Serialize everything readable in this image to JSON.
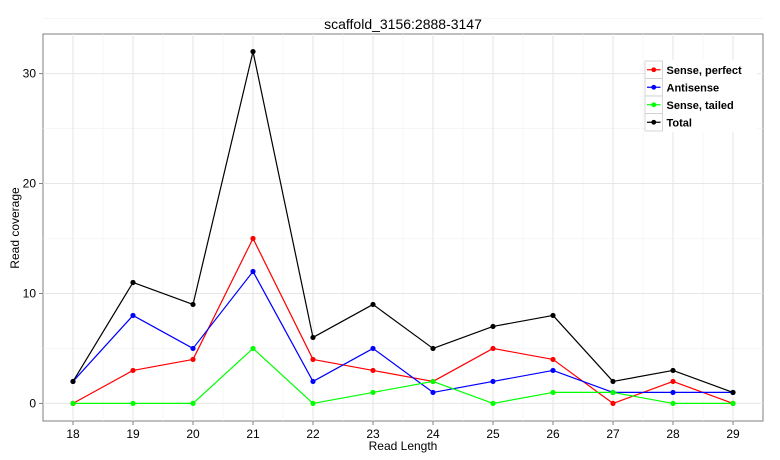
{
  "chart_data": {
    "type": "line",
    "title": "scaffold_3156:2888-3147",
    "xlabel": "Read Length",
    "ylabel": "Read coverage",
    "x": [
      18,
      19,
      20,
      21,
      22,
      23,
      24,
      25,
      26,
      27,
      28,
      29
    ],
    "xlim": [
      17.5,
      29.5
    ],
    "ylim": [
      -1.6,
      33.6
    ],
    "yticks": [
      0,
      10,
      20,
      30
    ],
    "grid": true,
    "legend_position": "top-right",
    "series": [
      {
        "name": "Sense, perfect",
        "color": "#ff0000",
        "values": [
          0,
          3,
          4,
          15,
          4,
          3,
          2,
          5,
          4,
          0,
          2,
          0
        ]
      },
      {
        "name": "Antisense",
        "color": "#0000ff",
        "values": [
          2,
          8,
          5,
          12,
          2,
          5,
          1,
          2,
          3,
          1,
          1,
          1
        ]
      },
      {
        "name": "Sense, tailed",
        "color": "#00ff00",
        "values": [
          0,
          0,
          0,
          5,
          0,
          1,
          2,
          0,
          1,
          1,
          0,
          0
        ]
      },
      {
        "name": "Total",
        "color": "#000000",
        "values": [
          2,
          11,
          9,
          32,
          6,
          9,
          5,
          7,
          8,
          2,
          3,
          1
        ]
      }
    ]
  }
}
